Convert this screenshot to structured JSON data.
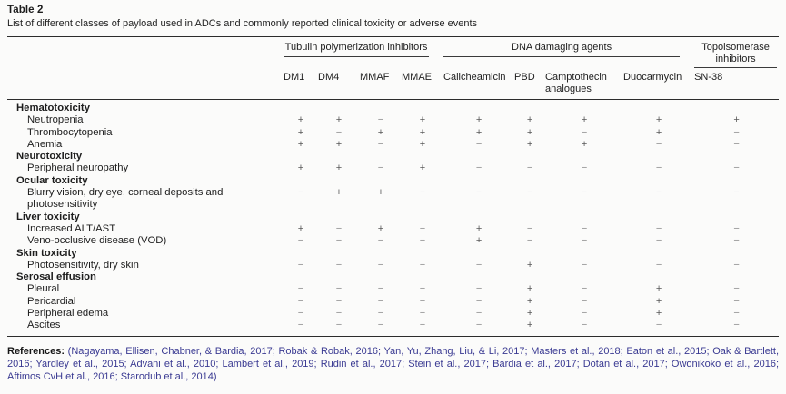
{
  "table": {
    "title": "Table 2",
    "caption": "List of different classes of payload used in ADCs and commonly reported clinical toxicity or adverse events",
    "groups": [
      {
        "label": "Tubulin polymerization inhibitors",
        "span": 4
      },
      {
        "label": "DNA damaging agents",
        "span": 4
      },
      {
        "label": "Topoisomerase inhibitors",
        "span": 1
      }
    ],
    "columns": [
      "DM1",
      "DM4",
      "MMAF",
      "MMAE",
      "Calicheamicin",
      "PBD",
      "Camptothecin analogues",
      "Duocarmycin",
      "SN-38"
    ],
    "rows": [
      {
        "type": "category",
        "label": "Hematotoxicity"
      },
      {
        "type": "data",
        "label": "Neutropenia",
        "values": [
          "+",
          "+",
          "−",
          "+",
          "+",
          "+",
          "+",
          "+",
          "+"
        ]
      },
      {
        "type": "data",
        "label": "Thrombocytopenia",
        "values": [
          "+",
          "−",
          "+",
          "+",
          "+",
          "+",
          "−",
          "+",
          "−"
        ]
      },
      {
        "type": "data",
        "label": "Anemia",
        "values": [
          "+",
          "+",
          "−",
          "+",
          "−",
          "+",
          "+",
          "−",
          "−"
        ]
      },
      {
        "type": "category",
        "label": "Neurotoxicity"
      },
      {
        "type": "data",
        "label": "Peripheral neuropathy",
        "values": [
          "+",
          "+",
          "−",
          "+",
          "−",
          "−",
          "−",
          "−",
          "−"
        ]
      },
      {
        "type": "category",
        "label": "Ocular toxicity"
      },
      {
        "type": "data",
        "label": "Blurry vision, dry eye, corneal deposits and photosensitivity",
        "values": [
          "−",
          "+",
          "+",
          "−",
          "−",
          "−",
          "−",
          "−",
          "−"
        ]
      },
      {
        "type": "category",
        "label": "Liver toxicity"
      },
      {
        "type": "data",
        "label": "Increased ALT/AST",
        "values": [
          "+",
          "−",
          "+",
          "−",
          "+",
          "−",
          "−",
          "−",
          "−"
        ]
      },
      {
        "type": "data",
        "label": "Veno-occlusive disease (VOD)",
        "values": [
          "−",
          "−",
          "−",
          "−",
          "+",
          "−",
          "−",
          "−",
          "−"
        ]
      },
      {
        "type": "category",
        "label": "Skin toxicity"
      },
      {
        "type": "data",
        "label": "Photosensitivity, dry skin",
        "values": [
          "−",
          "−",
          "−",
          "−",
          "−",
          "+",
          "−",
          "−",
          "−"
        ]
      },
      {
        "type": "category",
        "label": "Serosal effusion"
      },
      {
        "type": "data",
        "label": "Pleural",
        "values": [
          "−",
          "−",
          "−",
          "−",
          "−",
          "+",
          "−",
          "+",
          "−"
        ]
      },
      {
        "type": "data",
        "label": "Pericardial",
        "values": [
          "−",
          "−",
          "−",
          "−",
          "−",
          "+",
          "−",
          "+",
          "−"
        ]
      },
      {
        "type": "data",
        "label": "Peripheral edema",
        "values": [
          "−",
          "−",
          "−",
          "−",
          "−",
          "+",
          "−",
          "+",
          "−"
        ]
      },
      {
        "type": "data",
        "label": "Ascites",
        "values": [
          "−",
          "−",
          "−",
          "−",
          "−",
          "+",
          "−",
          "−",
          "−"
        ]
      }
    ]
  },
  "references": {
    "label": "References:",
    "text": "(Nagayama, Ellisen, Chabner, & Bardia, 2017; Robak & Robak, 2016; Yan, Yu, Zhang, Liu, & Li, 2017; Masters et al., 2018; Eaton et al., 2015; Oak & Bartlett, 2016; Yardley et al., 2015; Advani et al., 2010; Lambert et al., 2019; Rudin et al., 2017; Stein et al., 2017; Bardia et al., 2017; Dotan et al., 2017; Owonikoko et al., 2016; Aftimos CvH et al., 2016; Starodub et al., 2014)"
  }
}
